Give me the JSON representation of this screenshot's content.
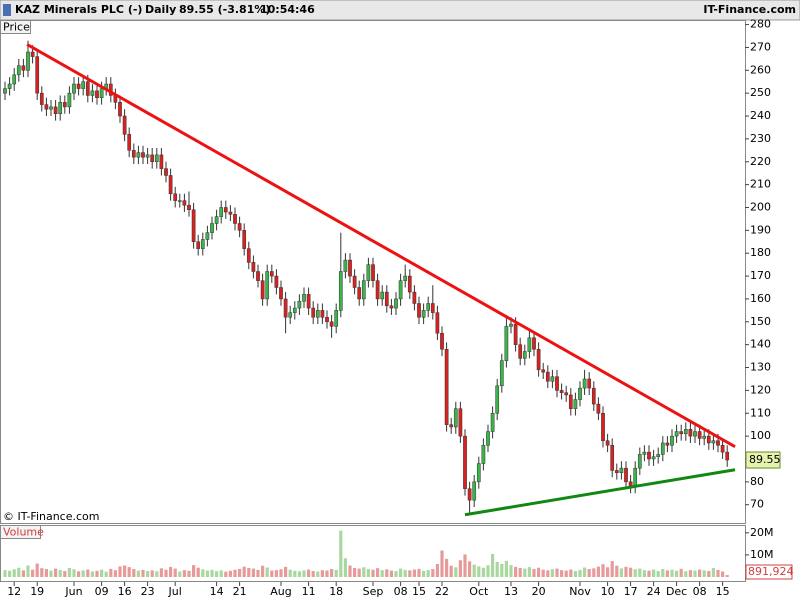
{
  "header": {
    "name": "KAZ Minerals PLC (-)",
    "period": "Daily",
    "quote": "89.55 (-3.81%)",
    "time": "10:54:46",
    "site": "IT-Finance.com"
  },
  "chart_data": {
    "type": "candlestick",
    "price_label": "Price",
    "copyright": "© IT-Finance.com",
    "up_color": "#3bb54a",
    "down_color": "#d82222",
    "ylim": [
      62,
      282
    ],
    "yticks": [
      70,
      80,
      90,
      100,
      110,
      120,
      130,
      140,
      150,
      160,
      170,
      180,
      190,
      200,
      210,
      220,
      230,
      240,
      250,
      260,
      270,
      280
    ],
    "categories": [
      null,
      null,
      "12",
      null,
      null,
      null,
      null,
      "19",
      null,
      null,
      null,
      null,
      null,
      null,
      null,
      "Jun",
      null,
      null,
      null,
      null,
      null,
      "09",
      null,
      null,
      null,
      null,
      "16",
      null,
      null,
      null,
      null,
      "23",
      null,
      null,
      null,
      null,
      null,
      "Jul",
      null,
      null,
      null,
      null,
      null,
      null,
      null,
      null,
      "14",
      null,
      null,
      null,
      null,
      "21",
      null,
      null,
      null,
      null,
      null,
      null,
      null,
      null,
      "Aug",
      null,
      null,
      null,
      null,
      null,
      "11",
      null,
      null,
      null,
      null,
      null,
      "18",
      null,
      null,
      null,
      null,
      null,
      null,
      null,
      "Sep",
      null,
      null,
      null,
      null,
      null,
      "08",
      null,
      null,
      null,
      "15",
      null,
      null,
      null,
      null,
      "22",
      null,
      null,
      null,
      null,
      null,
      null,
      null,
      "Oct",
      null,
      null,
      null,
      null,
      null,
      null,
      "13",
      null,
      null,
      null,
      null,
      null,
      "20",
      null,
      null,
      null,
      null,
      null,
      null,
      null,
      null,
      "Nov",
      null,
      null,
      null,
      null,
      null,
      "10",
      null,
      null,
      null,
      null,
      "17",
      null,
      null,
      null,
      null,
      "24",
      null,
      null,
      null,
      null,
      "Dec",
      null,
      null,
      null,
      null,
      "08",
      null,
      null,
      null,
      null,
      "15",
      null
    ],
    "open": [
      250,
      252,
      254,
      258,
      262,
      260,
      268,
      266,
      250,
      245,
      243,
      244,
      241,
      246,
      244,
      250,
      254,
      252,
      255,
      249,
      251,
      248,
      252,
      254,
      249,
      246,
      240,
      232,
      225,
      222,
      224,
      222,
      223,
      220,
      223,
      217,
      214,
      206,
      203,
      203,
      201,
      199,
      185,
      182,
      186,
      189,
      193,
      196,
      200,
      198,
      197,
      193,
      190,
      182,
      176,
      172,
      168,
      160,
      172,
      170,
      165,
      160,
      152,
      154,
      156,
      159,
      162,
      156,
      152,
      155,
      152,
      150,
      148,
      155,
      172,
      177,
      170,
      165,
      160,
      168,
      175,
      168,
      160,
      163,
      157,
      156,
      160,
      168,
      170,
      163,
      158,
      152,
      155,
      158,
      154,
      145,
      138,
      105,
      104,
      112,
      100,
      77,
      72,
      80,
      88,
      96,
      102,
      110,
      122,
      133,
      148,
      149,
      140,
      134,
      137,
      143,
      138,
      129,
      128,
      124,
      126,
      120,
      119,
      118,
      112,
      116,
      121,
      125,
      121,
      114,
      110,
      98,
      96,
      85,
      84,
      86,
      80,
      78,
      86,
      92,
      93,
      90,
      91,
      92,
      97,
      96,
      100,
      102,
      101,
      103,
      100,
      102,
      99,
      100,
      97,
      98,
      96,
      93
    ],
    "high": [
      255,
      257,
      261,
      265,
      265,
      273,
      271,
      269,
      253,
      248,
      247,
      247,
      249,
      249,
      253,
      257,
      257,
      258,
      258,
      254,
      254,
      255,
      257,
      257,
      252,
      249,
      243,
      235,
      228,
      227,
      227,
      226,
      226,
      226,
      226,
      220,
      217,
      209,
      206,
      206,
      207,
      202,
      188,
      189,
      192,
      196,
      199,
      203,
      203,
      201,
      200,
      196,
      193,
      185,
      179,
      175,
      171,
      175,
      175,
      173,
      168,
      163,
      157,
      159,
      162,
      165,
      165,
      159,
      158,
      158,
      155,
      153,
      158,
      189,
      180,
      180,
      173,
      168,
      171,
      178,
      178,
      171,
      166,
      166,
      160,
      163,
      171,
      175,
      173,
      166,
      161,
      158,
      161,
      166,
      157,
      148,
      141,
      108,
      115,
      115,
      103,
      80,
      83,
      91,
      99,
      105,
      113,
      125,
      136,
      153,
      152,
      152,
      143,
      140,
      146,
      146,
      141,
      132,
      131,
      129,
      129,
      123,
      122,
      121,
      119,
      124,
      129,
      128,
      124,
      117,
      113,
      101,
      99,
      88,
      89,
      89,
      83,
      89,
      95,
      96,
      96,
      94,
      95,
      100,
      100,
      103,
      105,
      105,
      106,
      106,
      105,
      105,
      103,
      103,
      101,
      101,
      99,
      96
    ],
    "low": [
      247,
      249,
      251,
      255,
      257,
      257,
      263,
      247,
      242,
      240,
      240,
      238,
      238,
      241,
      241,
      247,
      249,
      249,
      246,
      246,
      245,
      245,
      249,
      246,
      243,
      237,
      229,
      222,
      219,
      219,
      219,
      219,
      217,
      217,
      214,
      211,
      203,
      200,
      200,
      198,
      196,
      182,
      179,
      179,
      183,
      186,
      190,
      193,
      195,
      194,
      190,
      187,
      179,
      173,
      169,
      165,
      157,
      157,
      167,
      162,
      157,
      145,
      149,
      151,
      153,
      156,
      153,
      149,
      149,
      149,
      147,
      143,
      145,
      152,
      169,
      167,
      162,
      157,
      157,
      165,
      165,
      157,
      157,
      154,
      153,
      153,
      157,
      165,
      160,
      155,
      149,
      149,
      152,
      151,
      142,
      135,
      102,
      101,
      101,
      97,
      74,
      66,
      69,
      77,
      85,
      93,
      99,
      107,
      119,
      130,
      145,
      137,
      131,
      131,
      134,
      135,
      126,
      125,
      121,
      121,
      117,
      116,
      115,
      109,
      109,
      113,
      118,
      118,
      111,
      107,
      95,
      93,
      82,
      81,
      81,
      77,
      75,
      75,
      83,
      89,
      87,
      87,
      88,
      89,
      93,
      93,
      97,
      98,
      98,
      97,
      97,
      96,
      96,
      94,
      94,
      93,
      90,
      86.55
    ],
    "close": [
      252,
      254,
      258,
      262,
      260,
      268,
      266,
      250,
      245,
      243,
      244,
      241,
      246,
      244,
      250,
      254,
      252,
      255,
      249,
      251,
      248,
      252,
      254,
      249,
      246,
      240,
      232,
      225,
      222,
      224,
      222,
      223,
      220,
      223,
      217,
      214,
      206,
      203,
      203,
      201,
      199,
      185,
      182,
      186,
      189,
      193,
      196,
      200,
      198,
      197,
      193,
      190,
      182,
      176,
      172,
      168,
      160,
      172,
      170,
      165,
      160,
      152,
      154,
      156,
      159,
      162,
      156,
      152,
      155,
      152,
      150,
      148,
      155,
      172,
      177,
      170,
      165,
      160,
      168,
      175,
      168,
      160,
      163,
      157,
      156,
      160,
      168,
      170,
      163,
      158,
      152,
      155,
      158,
      154,
      145,
      138,
      105,
      104,
      112,
      100,
      77,
      72,
      80,
      88,
      96,
      102,
      110,
      122,
      133,
      148,
      149,
      140,
      134,
      137,
      143,
      138,
      129,
      128,
      124,
      126,
      120,
      119,
      118,
      112,
      116,
      121,
      125,
      121,
      114,
      110,
      98,
      96,
      85,
      84,
      86,
      80,
      78,
      86,
      92,
      93,
      90,
      91,
      92,
      97,
      96,
      100,
      102,
      101,
      103,
      100,
      102,
      99,
      100,
      97,
      98,
      96,
      93,
      89.55
    ],
    "trendlines": [
      {
        "color": "#ee1111",
        "x": [
          4.8,
          158.7
        ],
        "values": [
          271.3,
          95.4
        ]
      },
      {
        "color": "#118811",
        "x": [
          100,
          158.7
        ],
        "values": [
          65.6,
          85.3
        ]
      }
    ],
    "volume": {
      "label": "Volume",
      "up_color": "#a8d8a0",
      "down_color": "#e79a9a",
      "ylim": [
        0,
        24000000
      ],
      "yticks": [
        {
          "value": 20000000,
          "label": "20M"
        },
        {
          "value": 10000000,
          "label": "10M"
        }
      ],
      "last_label": "891,924",
      "values": [
        3100000,
        2800000,
        3500000,
        4200000,
        3000000,
        5200000,
        3300000,
        6100000,
        4000000,
        3600000,
        2900000,
        3800000,
        3200000,
        2700000,
        4100000,
        3500000,
        2600000,
        3000000,
        3400000,
        2500000,
        2800000,
        3300000,
        2400000,
        3700000,
        3100000,
        4800000,
        5200000,
        4500000,
        3600000,
        2900000,
        3200000,
        2700000,
        3000000,
        2600000,
        3900000,
        3300000,
        4600000,
        3800000,
        2500000,
        3100000,
        2800000,
        5400000,
        4200000,
        3500000,
        2900000,
        3200000,
        2600000,
        3000000,
        2400000,
        2800000,
        3300000,
        3600000,
        4700000,
        4100000,
        3800000,
        3200000,
        5100000,
        4300000,
        2900000,
        3100000,
        3500000,
        4600000,
        3300000,
        2800000,
        2600000,
        3000000,
        3400000,
        2700000,
        2500000,
        3100000,
        2900000,
        3600000,
        3200000,
        21000000,
        8500000,
        5200000,
        4100000,
        3800000,
        4400000,
        3600000,
        3300000,
        4000000,
        3100000,
        3500000,
        2900000,
        2700000,
        3800000,
        3200000,
        3000000,
        3400000,
        3700000,
        2800000,
        3100000,
        3600000,
        5900000,
        12000000,
        8200000,
        5100000,
        4400000,
        7600000,
        10200000,
        7100000,
        5600000,
        4800000,
        4200000,
        5300000,
        10400000,
        6800000,
        5900000,
        7300000,
        5400000,
        4600000,
        4100000,
        3800000,
        4500000,
        3600000,
        4200000,
        3300000,
        3000000,
        3500000,
        3800000,
        3100000,
        2900000,
        3400000,
        2700000,
        3200000,
        4300000,
        3600000,
        3900000,
        4700000,
        5800000,
        4400000,
        7200000,
        5100000,
        3900000,
        4600000,
        4200000,
        3500000,
        3800000,
        3100000,
        2900000,
        3400000,
        2700000,
        3600000,
        3000000,
        3300000,
        2800000,
        3700000,
        2600000,
        3100000,
        2900000,
        3400000,
        3000000,
        2700000,
        4100000,
        3200000,
        2500000,
        891924
      ]
    }
  }
}
